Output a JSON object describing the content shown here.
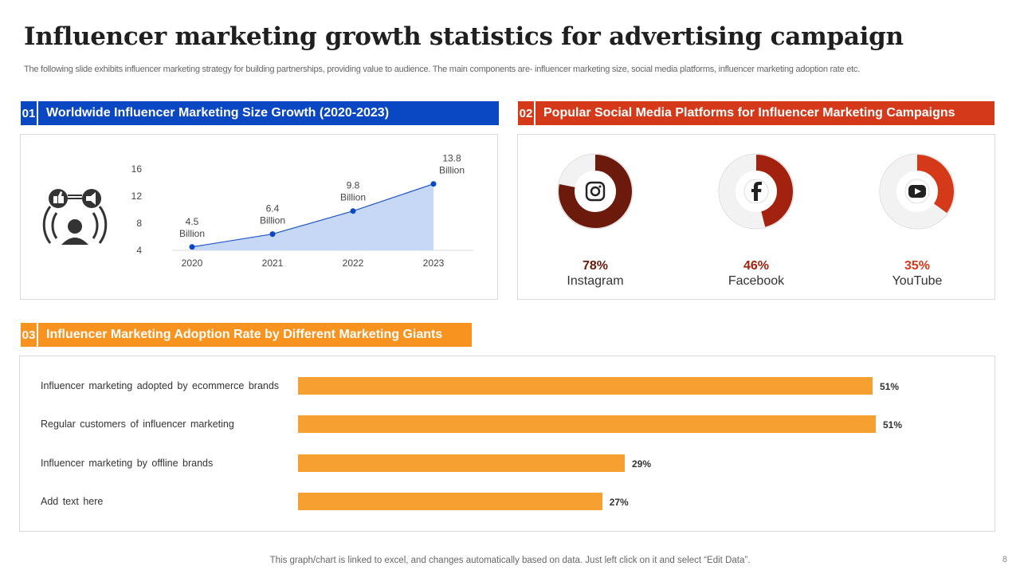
{
  "header": {
    "title": "Influencer marketing growth statistics for advertising campaign",
    "subtitle": "The following slide exhibits influencer marketing strategy for building partnerships, providing value to audience. The main components are- influencer marketing size, social media platforms, influencer marketing adoption rate etc."
  },
  "colors": {
    "blue": "#0a47c2",
    "red": "#d43a1a",
    "orange": "#f7931e",
    "bar_orange": "#f7a032",
    "area_fill": "#c7d8f7",
    "line_blue": "#1f56c4"
  },
  "sections": [
    {
      "num": "01",
      "label": "Worldwide Influencer Marketing Size Growth (2020-2023)"
    },
    {
      "num": "02",
      "label": "Popular Social Media Platforms for Influencer Marketing Campaigns"
    },
    {
      "num": "03",
      "label": "Influencer Marketing Adoption Rate by Different Marketing Giants"
    }
  ],
  "icons": {
    "growth_panel": "influencer-megaphone-icon"
  },
  "chart_data": [
    {
      "type": "area",
      "title": "Worldwide Influencer Marketing Size Growth (2020-2023)",
      "categories": [
        "2020",
        "2021",
        "2022",
        "2023"
      ],
      "values": [
        4.5,
        6.4,
        9.8,
        13.8
      ],
      "data_labels": [
        [
          "4.5",
          "Billion"
        ],
        [
          "6.4",
          "Billion"
        ],
        [
          "9.8",
          "Billion"
        ],
        [
          "13.8",
          "Billion"
        ]
      ],
      "ylim": [
        4,
        16
      ],
      "yticks": [
        "4",
        "8",
        "12",
        "16"
      ]
    },
    {
      "type": "pie",
      "title": "Popular Social Media Platforms for Influencer Marketing Campaigns",
      "items": [
        {
          "name": "Instagram",
          "value": 78,
          "label": "78%",
          "icon": "instagram-icon",
          "color": "#6b1a0c"
        },
        {
          "name": "Facebook",
          "value": 46,
          "label": "46%",
          "icon": "facebook-icon",
          "color": "#a3220f"
        },
        {
          "name": "YouTube",
          "value": 35,
          "label": "35%",
          "icon": "youtube-icon",
          "color": "#d43a1a"
        }
      ]
    },
    {
      "type": "bar",
      "orientation": "horizontal",
      "title": "Influencer Marketing Adoption Rate by Different Marketing Giants",
      "categories": [
        "Influencer marketing adopted by ecommerce brands",
        "Regular customers of influencer marketing",
        "Influencer marketing by offline brands",
        "Add text here"
      ],
      "values": [
        51,
        51,
        29,
        27
      ],
      "labels": [
        "51%",
        "51%",
        "29%",
        "27%"
      ]
    }
  ],
  "footer": {
    "note": "This graph/chart is linked to excel,  and changes automatically based on data. Just left click on it and select “Edit Data”.",
    "page": "8"
  }
}
